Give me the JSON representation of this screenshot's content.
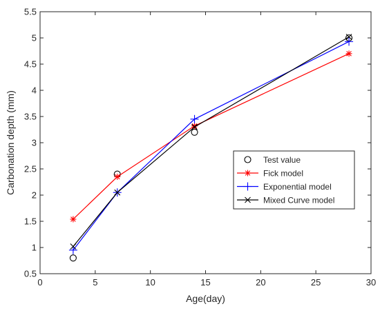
{
  "chart_data": {
    "type": "line",
    "title": "",
    "xlabel": "Age(day)",
    "ylabel": "Carbonation depth (mm)",
    "xlim": [
      0,
      30
    ],
    "ylim": [
      0.5,
      5.5
    ],
    "xticks": [
      0,
      5,
      10,
      15,
      20,
      25,
      30
    ],
    "yticks": [
      0.5,
      1,
      1.5,
      2,
      2.5,
      3,
      3.5,
      4,
      4.5,
      5,
      5.5
    ],
    "xtick_labels": [
      "0",
      "5",
      "10",
      "15",
      "20",
      "25",
      "30"
    ],
    "ytick_labels": [
      "0.5",
      "1",
      "1.5",
      "2",
      "2.5",
      "3",
      "3.5",
      "4",
      "4.5",
      "5",
      "5.5"
    ],
    "grid": false,
    "legend_position": "right",
    "series": [
      {
        "name": "Test value",
        "x": [
          3,
          7,
          14,
          28
        ],
        "y": [
          0.8,
          2.4,
          3.2,
          5.0
        ],
        "color": "#000000",
        "marker": "circle",
        "line": false
      },
      {
        "name": "Fick model",
        "x": [
          3,
          7,
          14,
          28
        ],
        "y": [
          1.54,
          2.35,
          3.32,
          4.7
        ],
        "color": "#ff0000",
        "marker": "asterisk",
        "line": true
      },
      {
        "name": "Exponential model",
        "x": [
          3,
          7,
          14,
          28
        ],
        "y": [
          0.95,
          2.05,
          3.45,
          4.93
        ],
        "color": "#0000ff",
        "marker": "plus",
        "line": true
      },
      {
        "name": "Mixed Curve model",
        "x": [
          3,
          7,
          14,
          28
        ],
        "y": [
          1.02,
          2.05,
          3.3,
          5.02
        ],
        "color": "#000000",
        "marker": "cross",
        "line": true
      }
    ]
  }
}
